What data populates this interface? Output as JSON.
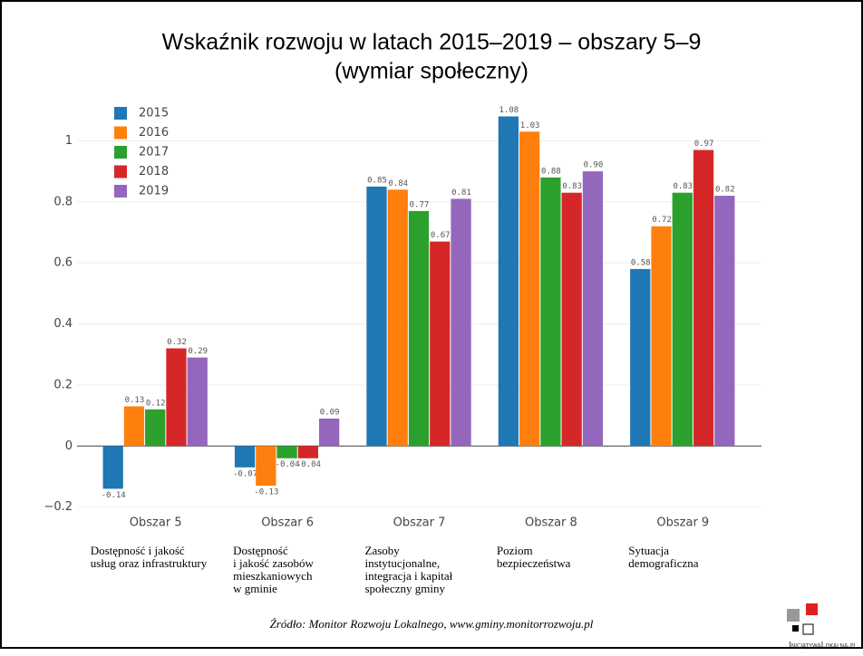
{
  "chart_data": {
    "type": "bar",
    "title": "Wskaźnik rozwoju w latach 2015–2019 – obszary 5–9",
    "subtitle": "(wymiar społeczny)",
    "categories": [
      "Obszar 5",
      "Obszar 6",
      "Obszar 7",
      "Obszar 8",
      "Obszar 9"
    ],
    "category_descriptions": [
      [
        "Dostępność i jakość",
        "usług oraz infrastruktury"
      ],
      [
        "Dostępność",
        "i jakość zasobów",
        "mieszkaniowych",
        "w gminie"
      ],
      [
        "Zasoby",
        "instytucjonalne,",
        "integracja i kapitał",
        "społeczny gminy"
      ],
      [
        "Poziom",
        "bezpieczeństwa"
      ],
      [
        "Sytuacja",
        "demograficzna"
      ]
    ],
    "series": [
      {
        "name": "2015",
        "color": "#1f77b4",
        "values": [
          -0.14,
          -0.07,
          0.85,
          1.08,
          0.58
        ],
        "value_labels": [
          "-0.14",
          "-0.07",
          "0.85",
          "1.08",
          "0.58"
        ]
      },
      {
        "name": "2016",
        "color": "#ff7f0e",
        "values": [
          0.13,
          -0.13,
          0.84,
          1.03,
          0.72
        ],
        "value_labels": [
          "0.13",
          "-0.13",
          "0.84",
          "1.03",
          "0.72"
        ]
      },
      {
        "name": "2017",
        "color": "#2ca02c",
        "values": [
          0.12,
          -0.04,
          0.77,
          0.88,
          0.83
        ],
        "value_labels": [
          "0.12",
          "-0.04",
          "0.77",
          "0.88",
          "0.83"
        ]
      },
      {
        "name": "2018",
        "color": "#d62728",
        "values": [
          0.32,
          -0.04,
          0.67,
          0.83,
          0.97
        ],
        "value_labels": [
          "0.32",
          "-0.04",
          "0.67",
          "0.83",
          "0.97"
        ]
      },
      {
        "name": "2019",
        "color": "#9467bd",
        "values": [
          0.29,
          0.09,
          0.81,
          0.9,
          0.82
        ],
        "value_labels": [
          "0.29",
          "0.09",
          "0.81",
          "0.90",
          "0.82"
        ]
      }
    ],
    "ylim": [
      -0.21,
      1.12
    ],
    "yticks": [
      {
        "value": -0.2,
        "label": "−0.2"
      },
      0,
      0.2,
      0.4,
      0.6,
      0.8,
      1
    ],
    "grid": true,
    "legend": "top-left",
    "source": "Źródło: Monitor Rozwoju Lokalnego, www.gminy.monitorrozwoju.pl",
    "brand": "InicjatywaLokalna.pl"
  }
}
